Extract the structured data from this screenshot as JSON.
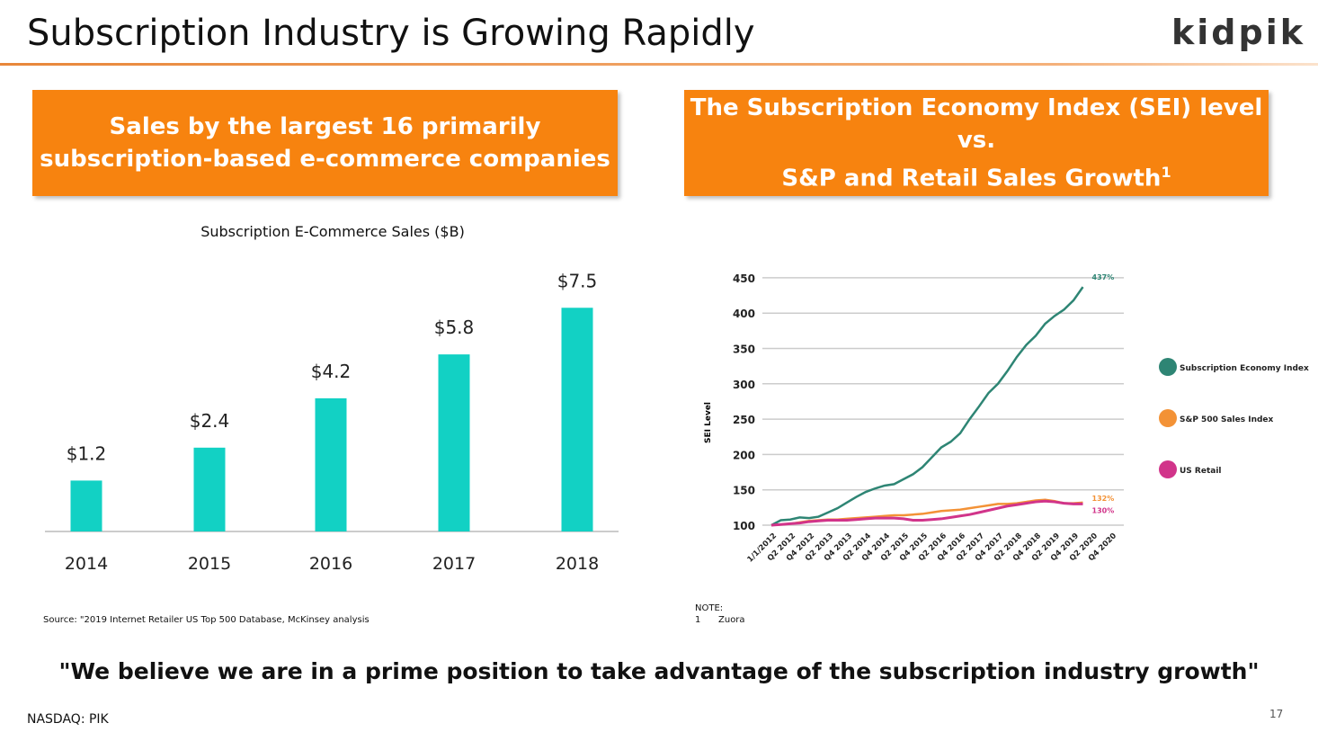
{
  "header": {
    "title": "Subscription Industry is Growing Rapidly",
    "logo": "kidpik"
  },
  "left_box": {
    "line1": "Sales by the largest 16 primarily",
    "line2": "subscription-based e-commerce companies"
  },
  "right_box": {
    "line1": "The Subscription Economy Index (SEI) level vs.",
    "line2": "S&P and Retail Sales Growth",
    "sup": "1"
  },
  "chart_data": [
    {
      "type": "bar",
      "title": "Subscription E-Commerce Sales ($B)",
      "categories": [
        "2014",
        "2015",
        "2016",
        "2017",
        "2018"
      ],
      "values": [
        1.2,
        2.4,
        4.2,
        5.8,
        7.5
      ],
      "data_labels": [
        "$1.2",
        "$2.4",
        "$4.2",
        "$5.8",
        "$7.5"
      ],
      "color": "#12d1c4",
      "xlabel": "",
      "ylabel": ""
    },
    {
      "type": "line",
      "ylabel": "SEI Level",
      "ylim": [
        100,
        450
      ],
      "yticks": [
        100,
        150,
        200,
        250,
        300,
        350,
        400,
        450
      ],
      "grid": true,
      "legend": "right",
      "xticks": [
        "1/1/2012",
        "Q2 2012",
        "Q4 2012",
        "Q2 2013",
        "Q4 2013",
        "Q2 2014",
        "Q4 2014",
        "Q2 2015",
        "Q4 2015",
        "Q2 2016",
        "Q4 2016",
        "Q2 2017",
        "Q4 2017",
        "Q2 2018",
        "Q4 2018",
        "Q2 2019",
        "Q4 2019",
        "Q2 2020",
        "Q4 2020"
      ],
      "series": [
        {
          "name": "Subscription Economy Index",
          "color": "#2e8574",
          "end_label": "437%",
          "values": [
            100,
            107,
            108,
            111,
            110,
            112,
            118,
            124,
            132,
            140,
            147,
            152,
            156,
            158,
            165,
            172,
            182,
            196,
            210,
            218,
            230,
            250,
            268,
            287,
            300,
            318,
            338,
            355,
            368,
            385,
            396,
            405,
            418,
            437
          ]
        },
        {
          "name": "S&P 500 Sales Index",
          "color": "#f39236",
          "end_label": "132%",
          "values": [
            100,
            101,
            102,
            104,
            106,
            107,
            108,
            108,
            109,
            110,
            111,
            112,
            113,
            114,
            114,
            115,
            116,
            118,
            120,
            121,
            122,
            124,
            126,
            128,
            130,
            130,
            131,
            133,
            135,
            136,
            134,
            131,
            131,
            132
          ]
        },
        {
          "name": "US Retail",
          "color": "#d1348a",
          "end_label": "130%",
          "values": [
            100,
            101,
            102,
            103,
            105,
            106,
            107,
            107,
            107,
            108,
            109,
            110,
            110,
            110,
            109,
            107,
            107,
            108,
            109,
            111,
            113,
            115,
            118,
            121,
            124,
            127,
            129,
            131,
            133,
            134,
            133,
            131,
            130,
            130
          ]
        }
      ]
    }
  ],
  "source": "Source: \"2019 Internet Retailer US Top 500  Database, McKinsey analysis",
  "note": {
    "label": "NOTE:",
    "num": "1",
    "text": "Zuora"
  },
  "quote": "\"We believe we are in a prime position to take advantage of the subscription industry growth\"",
  "footer": {
    "ticker": "NASDAQ: PIK",
    "page": "17"
  }
}
